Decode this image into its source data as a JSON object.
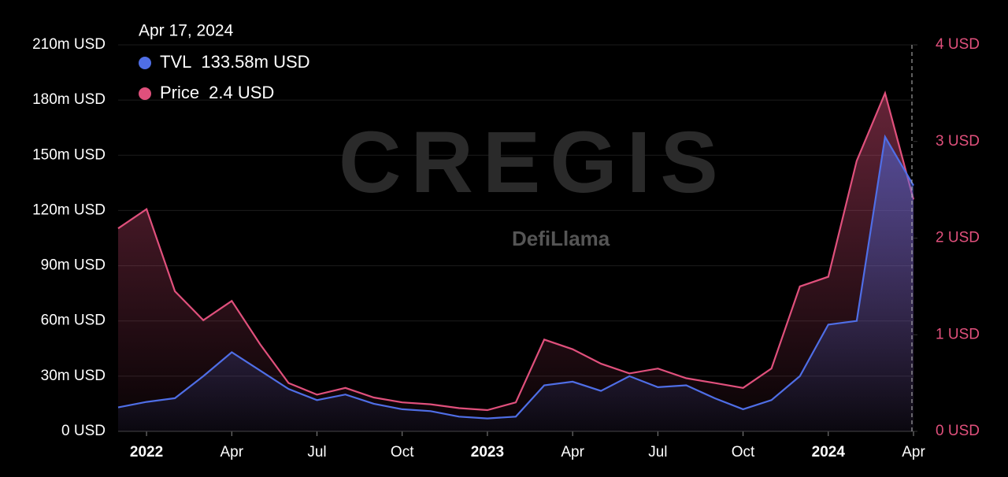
{
  "chart_data": {
    "type": "line",
    "tooltip": {
      "title": "Apr 17, 2024",
      "values": [
        "133.58m USD",
        "2.4 USD"
      ]
    },
    "watermarks": [
      "CREGIS",
      "DefiLlama"
    ],
    "x": [
      "2021-12",
      "2022-01",
      "2022-02",
      "2022-03",
      "2022-04",
      "2022-05",
      "2022-06",
      "2022-07",
      "2022-08",
      "2022-09",
      "2022-10",
      "2022-11",
      "2022-12",
      "2023-01",
      "2023-02",
      "2023-03",
      "2023-04",
      "2023-05",
      "2023-06",
      "2023-07",
      "2023-08",
      "2023-09",
      "2023-10",
      "2023-11",
      "2023-12",
      "2024-01",
      "2024-02",
      "2024-03",
      "2024-04"
    ],
    "xlim": [
      "2021-12",
      "2024-04"
    ],
    "xticks": [
      {
        "value": "2022-01",
        "label": "2022"
      },
      {
        "value": "2022-04",
        "label": "Apr"
      },
      {
        "value": "2022-07",
        "label": "Jul"
      },
      {
        "value": "2022-10",
        "label": "Oct"
      },
      {
        "value": "2023-01",
        "label": "2023"
      },
      {
        "value": "2023-04",
        "label": "Apr"
      },
      {
        "value": "2023-07",
        "label": "Jul"
      },
      {
        "value": "2023-10",
        "label": "Oct"
      },
      {
        "value": "2024-01",
        "label": "2024"
      },
      {
        "value": "2024-04",
        "label": "Apr"
      }
    ],
    "series": [
      {
        "name": "TVL",
        "color": "#4f6ee6",
        "axis": "y",
        "values": [
          13,
          16,
          18,
          30,
          43,
          33,
          23,
          17,
          20,
          15,
          12,
          11,
          8,
          7,
          8,
          25,
          27,
          22,
          30,
          24,
          25,
          18,
          12,
          17,
          30,
          58,
          60,
          160,
          133.58
        ]
      },
      {
        "name": "Price",
        "color": "#e0507c",
        "axis": "y2",
        "values": [
          2.1,
          2.3,
          1.45,
          1.15,
          1.35,
          0.9,
          0.5,
          0.38,
          0.45,
          0.35,
          0.3,
          0.28,
          0.24,
          0.22,
          0.3,
          0.95,
          0.85,
          0.7,
          0.6,
          0.65,
          0.55,
          0.5,
          0.45,
          0.65,
          1.5,
          1.6,
          2.8,
          3.5,
          2.4
        ]
      }
    ],
    "ylim": [
      0,
      210
    ],
    "yticks": [
      {
        "value": 0,
        "label": "0 USD"
      },
      {
        "value": 30,
        "label": "30m USD"
      },
      {
        "value": 60,
        "label": "60m USD"
      },
      {
        "value": 90,
        "label": "90m USD"
      },
      {
        "value": 120,
        "label": "120m USD"
      },
      {
        "value": 150,
        "label": "150m USD"
      },
      {
        "value": 180,
        "label": "180m USD"
      },
      {
        "value": 210,
        "label": "210m USD"
      }
    ],
    "y2lim": [
      0,
      4
    ],
    "y2ticks": [
      {
        "value": 0,
        "label": "0 USD"
      },
      {
        "value": 1,
        "label": "1 USD"
      },
      {
        "value": 2,
        "label": "2 USD"
      },
      {
        "value": 3,
        "label": "3 USD"
      },
      {
        "value": 4,
        "label": "4 USD"
      }
    ],
    "grid": true
  }
}
